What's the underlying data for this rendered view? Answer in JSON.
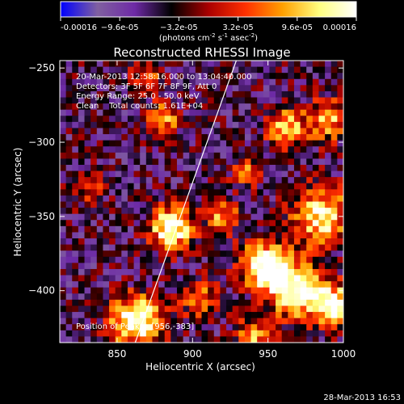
{
  "chart_data": {
    "type": "heatmap",
    "title": "Reconstructed RHESSI Image",
    "xlabel": "Heliocentric X (arcsec)",
    "ylabel": "Heliocentric Y (arcsec)",
    "xlim": [
      812,
      1000
    ],
    "ylim": [
      -435,
      -245
    ],
    "x_ticks": [
      850,
      900,
      950,
      1000
    ],
    "y_ticks": [
      -250,
      -300,
      -350,
      -400
    ],
    "colorbar": {
      "range": [
        -0.00016,
        0.00016
      ],
      "tick_values": [
        -0.00016,
        -9.6e-05,
        -3.2e-05,
        3.2e-05,
        9.6e-05,
        0.00016
      ],
      "tick_labels": [
        "-0.00016",
        "−9.6e-05",
        "−3.2e-05",
        "3.2e-05",
        "9.6e-05",
        "0.00016"
      ],
      "unit_parts": [
        "(photons cm",
        "-2",
        " s",
        "-1",
        " asec",
        "-2",
        ")"
      ],
      "stops": [
        "#0000ff",
        "#8060a0",
        "#6e2aa6",
        "#000000",
        "#aa0000",
        "#ff3000",
        "#ffa000",
        "#ffff80",
        "#ffffff"
      ]
    },
    "annotations": [
      "20-Mar-2013 12:58:16.000 to 13:04:40.000",
      "Detectors: 3F 5F 6F 7F 8F 9F, Att 0",
      "Energy Range: 25.0 - 50.0 keV",
      "Clean    Total counts: 1.61E+04"
    ],
    "peak_label": "Position of Peak = [956,-383]",
    "limb_line": [
      [
        862,
        -435
      ],
      [
        929,
        -245
      ]
    ],
    "grid": false,
    "emission_sources": [
      {
        "x": 863,
        "y": -420,
        "amp": 1.0,
        "sigma": 12
      },
      {
        "x": 886,
        "y": -358,
        "amp": 0.95,
        "sigma": 10
      },
      {
        "x": 948,
        "y": -383,
        "amp": 1.0,
        "sigma": 11
      },
      {
        "x": 968,
        "y": -400,
        "amp": 0.9,
        "sigma": 13
      },
      {
        "x": 985,
        "y": -350,
        "amp": 0.8,
        "sigma": 14
      },
      {
        "x": 993,
        "y": -410,
        "amp": 0.85,
        "sigma": 10
      },
      {
        "x": 962,
        "y": -290,
        "amp": 0.7,
        "sigma": 9
      },
      {
        "x": 990,
        "y": -285,
        "amp": 0.6,
        "sigma": 10
      },
      {
        "x": 880,
        "y": -285,
        "amp": 0.6,
        "sigma": 8
      },
      {
        "x": 920,
        "y": -350,
        "amp": 0.55,
        "sigma": 8
      },
      {
        "x": 870,
        "y": -255,
        "amp": 0.5,
        "sigma": 7
      },
      {
        "x": 935,
        "y": -320,
        "amp": 0.45,
        "sigma": 7
      },
      {
        "x": 905,
        "y": -405,
        "amp": 0.5,
        "sigma": 9
      },
      {
        "x": 830,
        "y": -330,
        "amp": 0.35,
        "sigma": 9
      },
      {
        "x": 940,
        "y": -430,
        "amp": 0.6,
        "sigma": 8
      }
    ],
    "background_level": -0.35
  },
  "footer": {
    "timestamp": "28-Mar-2013 16:53"
  }
}
